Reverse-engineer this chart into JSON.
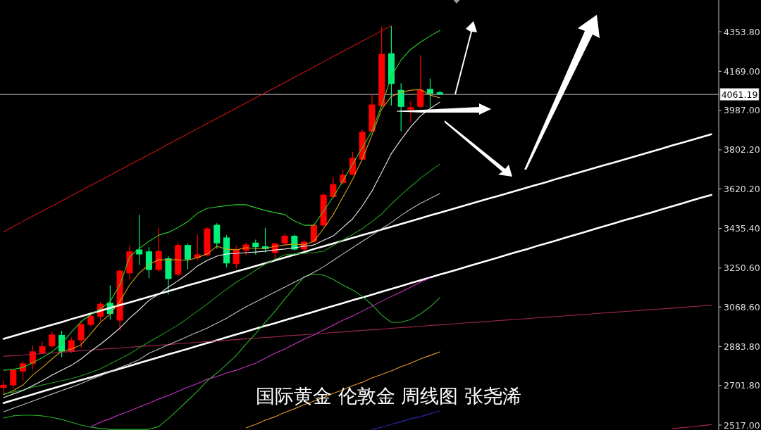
{
  "chart_data": {
    "type": "candlestick",
    "title": "国际黄金 伦敦金 周线图 张尧浠",
    "categories": [
      null,
      null,
      null,
      null,
      null,
      null,
      null,
      null,
      null,
      null,
      null,
      null,
      null,
      null,
      null,
      null,
      null,
      null,
      null,
      null,
      null,
      null,
      null,
      null,
      null,
      null,
      null,
      null,
      null,
      null,
      null,
      null,
      null,
      null,
      null,
      null,
      null,
      null,
      null,
      null,
      null,
      null,
      null,
      null,
      null,
      null,
      null,
      null,
      null,
      null,
      null,
      null,
      null,
      null,
      null,
      null,
      null,
      null,
      null,
      null,
      null,
      null,
      null,
      null,
      null,
      null,
      null,
      null,
      null,
      null,
      null,
      null,
      null,
      null
    ],
    "ylim": [
      2494,
      4502
    ],
    "yticks": [
      {
        "value": 4353.8,
        "label": "4353.80"
      },
      {
        "value": 4169,
        "label": "4169.00"
      },
      {
        "value": 3987,
        "label": "3987.00"
      },
      {
        "value": 3802.2,
        "label": "3802.20"
      },
      {
        "value": 3620.2,
        "label": "3620.20"
      },
      {
        "value": 3435.4,
        "label": "3435.40"
      },
      {
        "value": 3250.6,
        "label": "3250.60"
      },
      {
        "value": 3068.6,
        "label": "3068.60"
      },
      {
        "value": 2883.8,
        "label": "2883.80"
      },
      {
        "value": 2701.8,
        "label": "2701.80"
      },
      {
        "value": 2517,
        "label": "2517.00"
      }
    ],
    "tick_labels": "y",
    "ref_lines": [
      {
        "axis": "y",
        "value": 4061.19,
        "label": "4061.19",
        "color": "#bdbdbd"
      }
    ],
    "series": [
      {
        "ohlc": [
          [
            2691,
            2726,
            2657,
            2705
          ],
          [
            2702,
            2781,
            2691,
            2774
          ],
          [
            2767,
            2816,
            2726,
            2805
          ],
          [
            2802,
            2888,
            2774,
            2861
          ],
          [
            2853,
            2906,
            2850,
            2885
          ],
          [
            2885,
            2954,
            2878,
            2940
          ],
          [
            2938,
            2958,
            2834,
            2860
          ],
          [
            2860,
            2926,
            2854,
            2913
          ],
          [
            2913,
            3003,
            2878,
            2988
          ],
          [
            2985,
            3037,
            2978,
            3026
          ],
          [
            3023,
            3092,
            3003,
            3083
          ],
          [
            3088,
            3169,
            3010,
            3036
          ],
          [
            3005,
            3245,
            2958,
            3238
          ],
          [
            3226,
            3355,
            3196,
            3328
          ],
          [
            3337,
            3500,
            3265,
            3314
          ],
          [
            3328,
            3348,
            3203,
            3241
          ],
          [
            3241,
            3438,
            3231,
            3330
          ],
          [
            3296,
            3307,
            3127,
            3199
          ],
          [
            3220,
            3369,
            3210,
            3358
          ],
          [
            3358,
            3365,
            3245,
            3290
          ],
          [
            3297,
            3406,
            3286,
            3314
          ],
          [
            3310,
            3442,
            3304,
            3435
          ],
          [
            3452,
            3459,
            3341,
            3366
          ],
          [
            3393,
            3404,
            3254,
            3272
          ],
          [
            3269,
            3355,
            3249,
            3337
          ],
          [
            3332,
            3369,
            3310,
            3360
          ],
          [
            3369,
            3383,
            3314,
            3348
          ],
          [
            3352,
            3438,
            3323,
            3339
          ],
          [
            3321,
            3369,
            3286,
            3365
          ],
          [
            3365,
            3411,
            3360,
            3401
          ],
          [
            3401,
            3406,
            3332,
            3337
          ],
          [
            3337,
            3379,
            3318,
            3373
          ],
          [
            3373,
            3456,
            3365,
            3452
          ],
          [
            3449,
            3600,
            3442,
            3593
          ],
          [
            3582,
            3675,
            3576,
            3642
          ],
          [
            3647,
            3708,
            3642,
            3686
          ],
          [
            3686,
            3792,
            3683,
            3765
          ],
          [
            3757,
            3897,
            3755,
            3886
          ],
          [
            3888,
            4061,
            3886,
            4014
          ],
          [
            4007,
            4378,
            4003,
            4250
          ],
          [
            4253,
            4381,
            4009,
            4110
          ],
          [
            4082,
            4113,
            3888,
            4003
          ],
          [
            3990,
            4031,
            3930,
            4001
          ],
          [
            4003,
            4244,
            3998,
            4083
          ],
          [
            4087,
            4135,
            3998,
            4064
          ],
          [
            4071,
            4077,
            4058,
            4061.19
          ],
          null,
          null,
          null,
          null,
          null,
          null,
          null,
          null,
          null,
          null,
          null,
          null,
          null,
          null,
          null,
          null,
          null,
          null,
          null,
          null,
          null,
          null,
          null,
          null,
          null,
          null,
          null,
          null
        ],
        "colors": [
          "#ff0000",
          "#ff0000",
          "#ff0000",
          "#ff0000",
          "#ff0000",
          "#ff0000",
          "#00f07a",
          "#ff0000",
          "#ff0000",
          "#ff0000",
          "#ff0000",
          "#00f07a",
          "#ff0000",
          "#ff0000",
          "#00f07a",
          "#00f07a",
          "#ff0000",
          "#00f07a",
          "#ff0000",
          "#00f07a",
          "#ff0000",
          "#ff0000",
          "#00f07a",
          "#00f07a",
          "#ff0000",
          "#ff0000",
          "#00f07a",
          "#00f07a",
          "#ff0000",
          "#ff0000",
          "#00f07a",
          "#ff0000",
          "#ff0000",
          "#ff0000",
          "#ff0000",
          "#ff0000",
          "#ff0000",
          "#ff0000",
          "#ff0000",
          "#ff0000",
          "#00f07a",
          "#00f07a",
          "#ff0000",
          "#ff0000",
          "#00f07a",
          "#00f07a",
          null,
          null,
          null,
          null,
          null,
          null,
          null,
          null,
          null,
          null,
          null,
          null,
          null,
          null,
          null,
          null,
          null,
          null,
          null,
          null,
          null,
          null,
          null,
          null,
          null,
          null,
          null,
          null
        ]
      },
      {
        "type": "line",
        "color": "#ffffff",
        "values": [
          2920,
          2933,
          2946,
          2959,
          2972,
          2985,
          2998,
          3012,
          3025,
          3038,
          3051,
          3064,
          3077,
          3090,
          3103,
          3116,
          3129,
          3142,
          3155,
          3169,
          3182,
          3195,
          3208,
          3221,
          3234,
          3247,
          3260,
          3273,
          3286,
          3299,
          3312,
          3325,
          3339,
          3352,
          3365,
          3378,
          3391,
          3404,
          3417,
          3430,
          3443,
          3456,
          3469,
          3482,
          3496,
          3509,
          3522,
          3535,
          3548,
          3561,
          3574,
          3587,
          3600,
          3613,
          3626,
          3639,
          3652,
          3666,
          3679,
          3692,
          3705,
          3718,
          3731,
          3744,
          3757,
          3770,
          3783,
          3796,
          3809,
          3823,
          3836,
          3849,
          3862,
          3875
        ]
      },
      {
        "type": "line",
        "color": "#ffffff",
        "values": [
          2620,
          2634,
          2647,
          2660,
          2674,
          2687,
          2700,
          2714,
          2727,
          2740,
          2754,
          2767,
          2780,
          2793,
          2807,
          2820,
          2833,
          2847,
          2860,
          2873,
          2887,
          2900,
          2913,
          2927,
          2940,
          2953,
          2967,
          2980,
          2993,
          3007,
          3020,
          3033,
          3046,
          3060,
          3073,
          3086,
          3100,
          3113,
          3126,
          3140,
          3153,
          3166,
          3180,
          3193,
          3206,
          3220,
          3233,
          3246,
          3260,
          3273,
          3286,
          3299,
          3313,
          3326,
          3339,
          3353,
          3366,
          3379,
          3393,
          3406,
          3419,
          3433,
          3446,
          3459,
          3473,
          3486,
          3499,
          3512,
          3526,
          3539,
          3552,
          3566,
          3579,
          3592
        ]
      },
      {
        "type": "line",
        "color": "#c81414",
        "values": [
          3420,
          3444,
          3468,
          3492,
          3516,
          3540,
          3564,
          3588,
          3612,
          3636,
          3660,
          3684,
          3708,
          3732,
          3756,
          3780,
          3804,
          3829,
          3853,
          3877,
          3901,
          3925,
          3949,
          3973,
          3997,
          4021,
          4045,
          4069,
          4093,
          4117,
          4141,
          4165,
          4190,
          4214,
          4238,
          4262,
          4286,
          4310,
          4334,
          4358,
          4381,
          null,
          null,
          null,
          null,
          null,
          null,
          null,
          null,
          null,
          null,
          null,
          null,
          null,
          null,
          null,
          null,
          null,
          null,
          null,
          null,
          null,
          null,
          null,
          null,
          null,
          null,
          null,
          null,
          null,
          null,
          null,
          null,
          null
        ]
      },
      {
        "type": "line",
        "color": "#a3284e",
        "values": [
          2838,
          2841,
          2844,
          2848,
          2851,
          2854,
          2857,
          2861,
          2864,
          2867,
          2871,
          2874,
          2877,
          2880,
          2884,
          2887,
          2890,
          2893,
          2897,
          2900,
          2903,
          2907,
          2910,
          2913,
          2916,
          2920,
          2923,
          2926,
          2929,
          2933,
          2936,
          2939,
          2942,
          2946,
          2949,
          2952,
          2956,
          2959,
          2962,
          2965,
          2969,
          2972,
          2975,
          2978,
          2982,
          2985,
          2988,
          2992,
          2995,
          2998,
          3001,
          3005,
          3008,
          3011,
          3014,
          3018,
          3021,
          3024,
          3027,
          3031,
          3034,
          3037,
          3041,
          3044,
          3047,
          3050,
          3054,
          3057,
          3060,
          3063,
          3067,
          3070,
          3073,
          3077
        ]
      },
      {
        "type": "line",
        "color": "#a3284e",
        "values": [
          null,
          null,
          null,
          null,
          null,
          null,
          null,
          null,
          null,
          null,
          null,
          null,
          null,
          null,
          null,
          null,
          null,
          null,
          null,
          null,
          null,
          null,
          null,
          null,
          null,
          null,
          null,
          null,
          null,
          null,
          null,
          null,
          null,
          null,
          null,
          null,
          null,
          null,
          null,
          null,
          null,
          null,
          null,
          null,
          null,
          null,
          null,
          null,
          null,
          null,
          null,
          null,
          null,
          null,
          null,
          null,
          null,
          null,
          null,
          null,
          null,
          null,
          null,
          null,
          null,
          null,
          null,
          null,
          null,
          2500,
          2505,
          2509,
          2514,
          2519
        ]
      },
      {
        "type": "line",
        "color": "#d2a21c",
        "values": [
          2658,
          2678,
          2704,
          2750,
          2786,
          2826,
          2862,
          2872,
          2892,
          2944,
          2997,
          3036,
          3095,
          3171,
          3227,
          3266,
          3289,
          3289,
          3289,
          3286,
          3299,
          3316,
          3352,
          3339,
          3335,
          3345,
          3342,
          3342,
          3352,
          3358,
          3362,
          3358,
          3375,
          3434,
          3500,
          3582,
          3664,
          3759,
          3871,
          3992,
          4052,
          4071,
          4081,
          4084,
          4058,
          4045,
          null,
          null,
          null,
          null,
          null,
          null,
          null,
          null,
          null,
          null,
          null,
          null,
          null,
          null,
          null,
          null,
          null,
          null,
          null,
          null,
          null,
          null,
          null,
          null,
          null,
          null,
          null,
          null
        ]
      },
      {
        "type": "line",
        "color": "#2ccf2c",
        "values": [
          2773,
          2777,
          2786,
          2809,
          2832,
          2859,
          2898,
          2951,
          3000,
          3033,
          3059,
          3095,
          3171,
          3302,
          3342,
          3375,
          3404,
          3417,
          3440,
          3467,
          3506,
          3529,
          3536,
          3542,
          3546,
          3546,
          3532,
          3519,
          3509,
          3500,
          3470,
          3450,
          3450,
          3516,
          3582,
          3657,
          3736,
          3812,
          3891,
          4009,
          4147,
          4222,
          4272,
          4305,
          4334,
          4360,
          null,
          null,
          null,
          null,
          null,
          null,
          null,
          null,
          null,
          null,
          null,
          null,
          null,
          null,
          null,
          null,
          null,
          null,
          null,
          null,
          null,
          null,
          null,
          null,
          null,
          null,
          null,
          null
        ]
      },
      {
        "type": "line",
        "color": "#1f9a1f",
        "values": [
          2662,
          2671,
          2681,
          2694,
          2704,
          2714,
          2724,
          2734,
          2747,
          2763,
          2780,
          2803,
          2826,
          2849,
          2878,
          2905,
          2931,
          2957,
          2984,
          3016,
          3049,
          3082,
          3118,
          3151,
          3184,
          3210,
          3240,
          3269,
          3292,
          3312,
          3316,
          3319,
          3322,
          3329,
          3355,
          3381,
          3407,
          3434,
          3467,
          3503,
          3549,
          3592,
          3631,
          3670,
          3703,
          3736,
          null,
          null,
          null,
          null,
          null,
          null,
          null,
          null,
          null,
          null,
          null,
          null,
          null,
          null,
          null,
          null,
          null,
          null,
          null,
          null,
          null,
          null,
          null,
          null,
          null,
          null,
          null,
          null
        ]
      },
      {
        "type": "line",
        "color": "#28b428",
        "values": [
          2550,
          2560,
          2563,
          2563,
          2560,
          2553,
          2543,
          2530,
          2517,
          2507,
          2501,
          2497,
          2497,
          2497,
          2497,
          2497,
          2510,
          2547,
          2589,
          2632,
          2675,
          2724,
          2760,
          2800,
          2842,
          2895,
          2944,
          2997,
          3049,
          3105,
          3158,
          3210,
          3223,
          3217,
          3197,
          3171,
          3148,
          3118,
          3079,
          3030,
          2997,
          2997,
          3010,
          3036,
          3069,
          3112,
          null,
          null,
          null,
          null,
          null,
          null,
          null,
          null,
          null,
          null,
          null,
          null,
          null,
          null,
          null,
          null,
          null,
          null,
          null,
          null,
          null,
          null,
          null,
          null,
          null,
          null,
          null,
          null
        ]
      },
      {
        "type": "line",
        "color": "#ececec",
        "values": [
          2645,
          2662,
          2678,
          2701,
          2724,
          2750,
          2773,
          2796,
          2826,
          2862,
          2895,
          2931,
          2970,
          3016,
          3056,
          3099,
          3128,
          3161,
          3191,
          3223,
          3260,
          3286,
          3306,
          3316,
          3319,
          3322,
          3325,
          3329,
          3335,
          3339,
          3345,
          3352,
          3358,
          3380,
          3400,
          3440,
          3480,
          3540,
          3610,
          3697,
          3785,
          3850,
          3910,
          3960,
          3995,
          4025,
          null,
          null,
          null,
          null,
          null,
          null,
          null,
          null,
          null,
          null,
          null,
          null,
          null,
          null,
          null,
          null,
          null,
          null,
          null,
          null,
          null,
          null,
          null,
          null,
          null,
          null,
          null,
          null
        ]
      },
      {
        "type": "line",
        "color": "#bdbdbd",
        "values": [
          2579,
          2596,
          2612,
          2629,
          2645,
          2662,
          2678,
          2694,
          2711,
          2731,
          2747,
          2767,
          2786,
          2803,
          2823,
          2852,
          2872,
          2892,
          2911,
          2931,
          2951,
          2970,
          2993,
          3016,
          3043,
          3069,
          3092,
          3115,
          3138,
          3161,
          3184,
          3207,
          3230,
          3256,
          3286,
          3316,
          3345,
          3375,
          3404,
          3434,
          3463,
          3496,
          3526,
          3552,
          3575,
          3598,
          null,
          null,
          null,
          null,
          null,
          null,
          null,
          null,
          null,
          null,
          null,
          null,
          null,
          null,
          null,
          null,
          null,
          null,
          null,
          null,
          null,
          null,
          null,
          null,
          null,
          null,
          null,
          null
        ]
      },
      {
        "type": "line",
        "color": "#c832c8",
        "values": [
          null,
          null,
          null,
          null,
          null,
          null,
          null,
          null,
          null,
          2510,
          2530,
          2547,
          2566,
          2583,
          2602,
          2619,
          2639,
          2655,
          2675,
          2694,
          2711,
          2731,
          2744,
          2760,
          2773,
          2790,
          2806,
          2829,
          2852,
          2872,
          2895,
          2918,
          2938,
          2961,
          2984,
          3007,
          3026,
          3049,
          3072,
          3095,
          3118,
          3138,
          3161,
          3184,
          3204,
          null,
          null,
          null,
          null,
          null,
          null,
          null,
          null,
          null,
          null,
          null,
          null,
          null,
          null,
          null,
          null,
          null,
          null,
          null,
          null,
          null,
          null,
          null,
          null,
          null,
          null,
          null,
          null,
          null
        ]
      },
      {
        "type": "line",
        "color": "#e6962d",
        "values": [
          null,
          null,
          null,
          null,
          null,
          null,
          null,
          null,
          null,
          null,
          null,
          null,
          null,
          null,
          null,
          null,
          null,
          null,
          null,
          null,
          null,
          null,
          null,
          null,
          null,
          2504,
          2520,
          2540,
          2556,
          2576,
          2593,
          2612,
          2629,
          2645,
          2665,
          2681,
          2701,
          2717,
          2737,
          2754,
          2770,
          2790,
          2806,
          2826,
          2842,
          2859,
          null,
          null,
          null,
          null,
          null,
          null,
          null,
          null,
          null,
          null,
          null,
          null,
          null,
          null,
          null,
          null,
          null,
          null,
          null,
          null,
          null,
          null,
          null,
          null,
          null,
          null,
          null,
          null
        ]
      },
      {
        "type": "line",
        "color": "#2a2aa8",
        "values": [
          null,
          null,
          null,
          null,
          null,
          null,
          null,
          null,
          null,
          null,
          null,
          null,
          null,
          null,
          null,
          null,
          null,
          null,
          null,
          null,
          null,
          null,
          null,
          null,
          null,
          null,
          null,
          null,
          null,
          null,
          null,
          null,
          null,
          null,
          null,
          null,
          null,
          null,
          2497,
          2507,
          2520,
          2533,
          2547,
          2556,
          2570,
          2583,
          null,
          null,
          null,
          null,
          null,
          null,
          null,
          null,
          null,
          null,
          null,
          null,
          null,
          null,
          null,
          null,
          null,
          null,
          null,
          null,
          null,
          null,
          null,
          null,
          null,
          null,
          null,
          null
        ]
      }
    ]
  }
}
